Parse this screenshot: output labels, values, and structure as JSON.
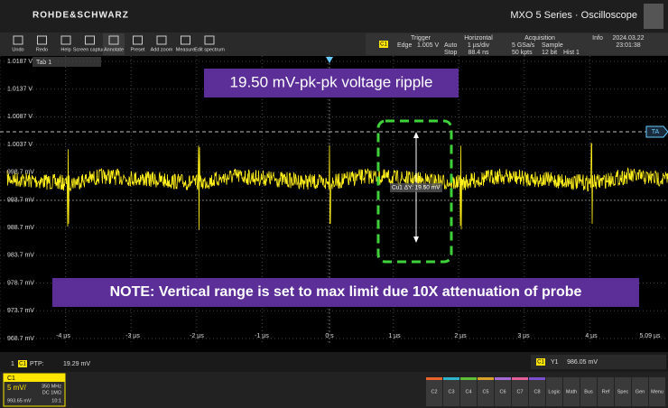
{
  "header": {
    "brand": "ROHDE&SCHWARZ",
    "product": "MXO 5 Series · Oscilloscope"
  },
  "toolbar": [
    "Undo",
    "Redo",
    "Help",
    "Screen capture",
    "Annotate",
    "Preset",
    "Add zoom",
    "Measure",
    "Edit spectrum"
  ],
  "trigger": {
    "title": "Trigger",
    "source": "C1",
    "type": "Edge",
    "level": "1.005 V",
    "mode": "Auto",
    "state": "Stop"
  },
  "horizontal": {
    "title": "Horizontal",
    "scale": "1 µs/div",
    "position": "88.4 ns"
  },
  "acquisition": {
    "title": "Acquisition",
    "rate": "5 GSa/s",
    "points": "50 kpts",
    "mode": "Sample",
    "bits": "12 bit",
    "hist": "Hist 1"
  },
  "info": {
    "title": "Info",
    "date": "2024.03.22",
    "time": "23:01:38"
  },
  "tab": "Tab 1",
  "y_labels": [
    "1.0187 V",
    "1.0137 V",
    "1.0087 V",
    "1.0037 V",
    "998.7 mV",
    "993.7 mV",
    "988.7 mV",
    "983.7 mV",
    "978.7 mV",
    "973.7 mV",
    "968.7 mV"
  ],
  "x_labels": [
    "-4 µs",
    "-3 µs",
    "-2 µs",
    "-1 µs",
    "0 s",
    "1 µs",
    "2 µs",
    "3 µs",
    "4 µs",
    "5.09 µs"
  ],
  "annotations": {
    "ripple": "19.50 mV-pk-pk voltage ripple",
    "note": "NOTE: Vertical range is set to max limit due 10X attenuation of probe",
    "cursor": "Cu1 ΔY: 19.50 mV",
    "ref": "TA"
  },
  "measurement": {
    "index": "1",
    "source": "C1",
    "name": "PTP:",
    "value": "19.29 mV"
  },
  "cursor_readout": {
    "source": "C1",
    "name": "Y1",
    "value": "986.05 mV"
  },
  "channel": {
    "name": "C1",
    "scale": "5 mV/",
    "bandwidth": "350 MHz",
    "coupling": "DC 1MΩ",
    "offset": "993.65 mV",
    "probe": "10:1"
  },
  "channel_buttons": [
    "C2",
    "C3",
    "C4",
    "C5",
    "C6",
    "C7",
    "C8",
    "Logic",
    "Math",
    "Bus",
    "Ref",
    "Spec",
    "Gen",
    "Menu"
  ]
}
